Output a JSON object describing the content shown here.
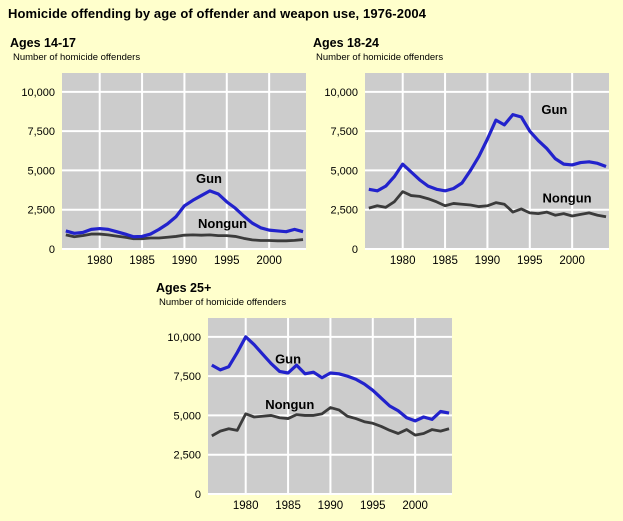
{
  "title": "Homicide offending by age of offender and weapon use, 1976-2004",
  "colors": {
    "background": "#ffffcc",
    "plot_background": "#cccccc",
    "gridline": "#ffffff",
    "gun_line": "#2222cc",
    "nongun_line": "#3b3b3b",
    "text": "#000000"
  },
  "years": [
    1976,
    1977,
    1978,
    1979,
    1980,
    1981,
    1982,
    1983,
    1984,
    1985,
    1986,
    1987,
    1988,
    1989,
    1990,
    1991,
    1992,
    1993,
    1994,
    1995,
    1996,
    1997,
    1998,
    1999,
    2000,
    2001,
    2002,
    2003,
    2004
  ],
  "chart_data": [
    {
      "type": "line",
      "title": "Ages 14-17",
      "ylabel": "Number of homicide offenders",
      "xlim": [
        1975.55,
        2004.35
      ],
      "ylim": [
        0,
        11200
      ],
      "grid": true,
      "xticks": [
        1980,
        1985,
        1990,
        1995,
        2000
      ],
      "xtick_labels": [
        "1980",
        "1985",
        "1990",
        "1995",
        "2000"
      ],
      "yticks": [
        0,
        2500,
        5000,
        7500,
        10000
      ],
      "ytick_labels": [
        "0",
        "2,500",
        "5,000",
        "7,500",
        "10,000"
      ],
      "series": [
        {
          "name": "Gun",
          "color": "#2222cc",
          "label_at": {
            "year": 1992.9,
            "value": 4450
          },
          "values": [
            1150,
            1000,
            1050,
            1250,
            1300,
            1250,
            1100,
            950,
            780,
            800,
            950,
            1250,
            1600,
            2050,
            2750,
            3100,
            3400,
            3700,
            3500,
            3000,
            2600,
            2100,
            1650,
            1350,
            1200,
            1150,
            1100,
            1250,
            1100
          ]
        },
        {
          "name": "Nongun",
          "color": "#3b3b3b",
          "label_at": {
            "year": 1994.5,
            "value": 1600
          },
          "values": [
            900,
            780,
            850,
            950,
            950,
            900,
            820,
            750,
            650,
            650,
            700,
            700,
            750,
            800,
            880,
            900,
            880,
            900,
            850,
            850,
            800,
            680,
            580,
            540,
            540,
            520,
            520,
            550,
            600
          ]
        }
      ]
    },
    {
      "type": "line",
      "title": "Ages 18-24",
      "ylabel": "Number of homicide offenders",
      "xlim": [
        1975.55,
        2004.35
      ],
      "ylim": [
        0,
        11200
      ],
      "grid": true,
      "xticks": [
        1980,
        1985,
        1990,
        1995,
        2000
      ],
      "xtick_labels": [
        "1980",
        "1985",
        "1990",
        "1995",
        "2000"
      ],
      "yticks": [
        0,
        2500,
        5000,
        7500,
        10000
      ],
      "ytick_labels": [
        "0",
        "2,500",
        "5,000",
        "7,500",
        "10,000"
      ],
      "series": [
        {
          "name": "Gun",
          "color": "#2222cc",
          "label_at": {
            "year": 1997.9,
            "value": 8850
          },
          "values": [
            3800,
            3700,
            4000,
            4600,
            5400,
            4900,
            4400,
            4000,
            3800,
            3700,
            3850,
            4200,
            5000,
            5900,
            7000,
            8200,
            7900,
            8550,
            8400,
            7500,
            6900,
            6400,
            5750,
            5400,
            5350,
            5500,
            5550,
            5450,
            5250
          ]
        },
        {
          "name": "Nongun",
          "color": "#3b3b3b",
          "label_at": {
            "year": 1999.4,
            "value": 3200
          },
          "values": [
            2600,
            2750,
            2650,
            3000,
            3650,
            3400,
            3350,
            3200,
            3000,
            2750,
            2900,
            2850,
            2800,
            2700,
            2750,
            2950,
            2850,
            2350,
            2550,
            2300,
            2250,
            2350,
            2150,
            2250,
            2100,
            2200,
            2300,
            2150,
            2050
          ]
        }
      ]
    },
    {
      "type": "line",
      "title": "Ages 25+",
      "ylabel": "Number of homicide offenders",
      "xlim": [
        1975.55,
        2004.35
      ],
      "ylim": [
        0,
        11200
      ],
      "grid": true,
      "xticks": [
        1980,
        1985,
        1990,
        1995,
        2000
      ],
      "xtick_labels": [
        "1980",
        "1985",
        "1990",
        "1995",
        "2000"
      ],
      "yticks": [
        0,
        2500,
        5000,
        7500,
        10000
      ],
      "ytick_labels": [
        "0",
        "2,500",
        "5,000",
        "7,500",
        "10,000"
      ],
      "series": [
        {
          "name": "Gun",
          "color": "#2222cc",
          "label_at": {
            "year": 1985.0,
            "value": 8550
          },
          "values": [
            8200,
            7900,
            8100,
            9000,
            10000,
            9500,
            8900,
            8300,
            7800,
            7700,
            8200,
            7650,
            7750,
            7400,
            7700,
            7650,
            7500,
            7300,
            7000,
            6600,
            6100,
            5600,
            5300,
            4850,
            4650,
            4900,
            4750,
            5250,
            5150
          ]
        },
        {
          "name": "Nongun",
          "color": "#3b3b3b",
          "label_at": {
            "year": 1985.2,
            "value": 5670
          },
          "values": [
            3700,
            4000,
            4150,
            4050,
            5100,
            4900,
            4950,
            5000,
            4850,
            4800,
            5050,
            5000,
            5000,
            5100,
            5500,
            5350,
            4950,
            4800,
            4600,
            4500,
            4300,
            4050,
            3850,
            4100,
            3750,
            3850,
            4100,
            4000,
            4150
          ]
        }
      ]
    }
  ]
}
